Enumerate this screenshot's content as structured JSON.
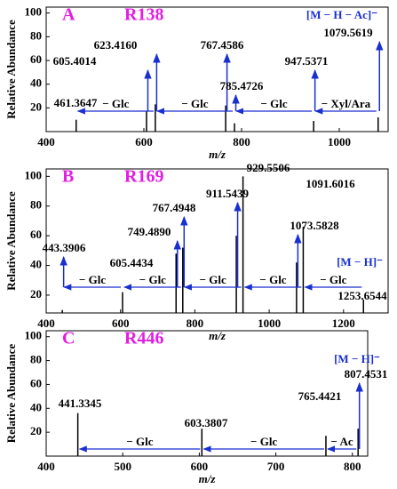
{
  "chart_data": [
    {
      "type": "stem",
      "panel": "A",
      "compound": "R138",
      "ylabel": "Relative Abundance",
      "xlabel": "m/z",
      "x": [
        461.3647,
        605.4014,
        623.416,
        767.4586,
        785.4726,
        947.5371,
        1079.5619
      ],
      "x_labels": [
        "461.3647",
        "605.4014",
        "623.4160",
        "767.4586",
        "785.4726",
        "947.5371",
        "1079.5619"
      ],
      "values": [
        10,
        17,
        23,
        22,
        7,
        9,
        12
      ],
      "ion_label": "[M − H − Ac]⁻",
      "losses": [
        {
          "label": "− Glc",
          "from": 623.416,
          "to": 461.3647
        },
        {
          "label": "− Glc",
          "from": 785.4726,
          "to": 623.416
        },
        {
          "label": "− Glc",
          "from": 947.5371,
          "to": 785.4726
        },
        {
          "label": "− Xyl/Ara",
          "from": 1079.5619,
          "to": 947.5371
        }
      ],
      "xlim": [
        400,
        1100
      ],
      "xticks": [
        400,
        600,
        800,
        1000
      ],
      "ylim": [
        0,
        105
      ],
      "yticks": [
        20,
        40,
        60,
        80,
        100
      ],
      "color": "#000000",
      "annotation_color": "#1a2fd0",
      "title_color": "#e21ee2"
    },
    {
      "type": "stem",
      "panel": "B",
      "compound": "R169",
      "ylabel": "Relative Abundance",
      "xlabel": "m/z",
      "x": [
        443.3906,
        605.4434,
        749.489,
        767.4948,
        911.5439,
        929.5506,
        1073.5828,
        1091.6016,
        1253.6544
      ],
      "x_labels": [
        "443.3906",
        "605.4434",
        "749.4890",
        "767.4948",
        "911.5439",
        "929.5506",
        "1073.5828",
        "1091.6016",
        "1253.6544"
      ],
      "values": [
        10,
        22,
        48,
        52,
        60,
        100,
        42,
        66,
        17
      ],
      "ion_label": "[M − H]⁻",
      "losses": [
        {
          "label": "− Glc",
          "from": 605.4434,
          "to": 443.3906
        },
        {
          "label": "− Glc",
          "from": 767.4948,
          "to": 605.4434
        },
        {
          "label": "− Glc",
          "from": 929.5506,
          "to": 767.4948
        },
        {
          "label": "− Glc",
          "from": 1091.6016,
          "to": 929.5506
        },
        {
          "label": "− Glc",
          "from": 1253.6544,
          "to": 1091.6016
        }
      ],
      "xlim": [
        400,
        1320
      ],
      "xticks": [
        400,
        600,
        800,
        1000,
        1200
      ],
      "ylim": [
        8,
        105
      ],
      "yticks": [
        20,
        40,
        60,
        80,
        100
      ],
      "color": "#000000",
      "annotation_color": "#1a2fd0",
      "title_color": "#e21ee2"
    },
    {
      "type": "stem",
      "panel": "C",
      "compound": "R446",
      "ylabel": "Relative Abundance",
      "xlabel": "m/z",
      "x": [
        441.3345,
        603.3807,
        765.4421,
        807.4531
      ],
      "x_labels": [
        "441.3345",
        "603.3807",
        "765.4421",
        "807.4531"
      ],
      "values": [
        36,
        23,
        17,
        23
      ],
      "ion_label": "[M − H]⁻",
      "losses": [
        {
          "label": "− Glc",
          "from": 603.3807,
          "to": 441.3345
        },
        {
          "label": "− Glc",
          "from": 765.4421,
          "to": 603.3807
        },
        {
          "label": "− Ac",
          "from": 807.4531,
          "to": 765.4421
        }
      ],
      "xlim": [
        400,
        820
      ],
      "xticks": [
        400,
        500,
        600,
        700,
        800
      ],
      "ylim": [
        0,
        105
      ],
      "yticks": [
        20,
        40,
        60,
        80,
        100
      ],
      "color": "#000000",
      "annotation_color": "#1a2fd0",
      "title_color": "#e21ee2"
    }
  ]
}
